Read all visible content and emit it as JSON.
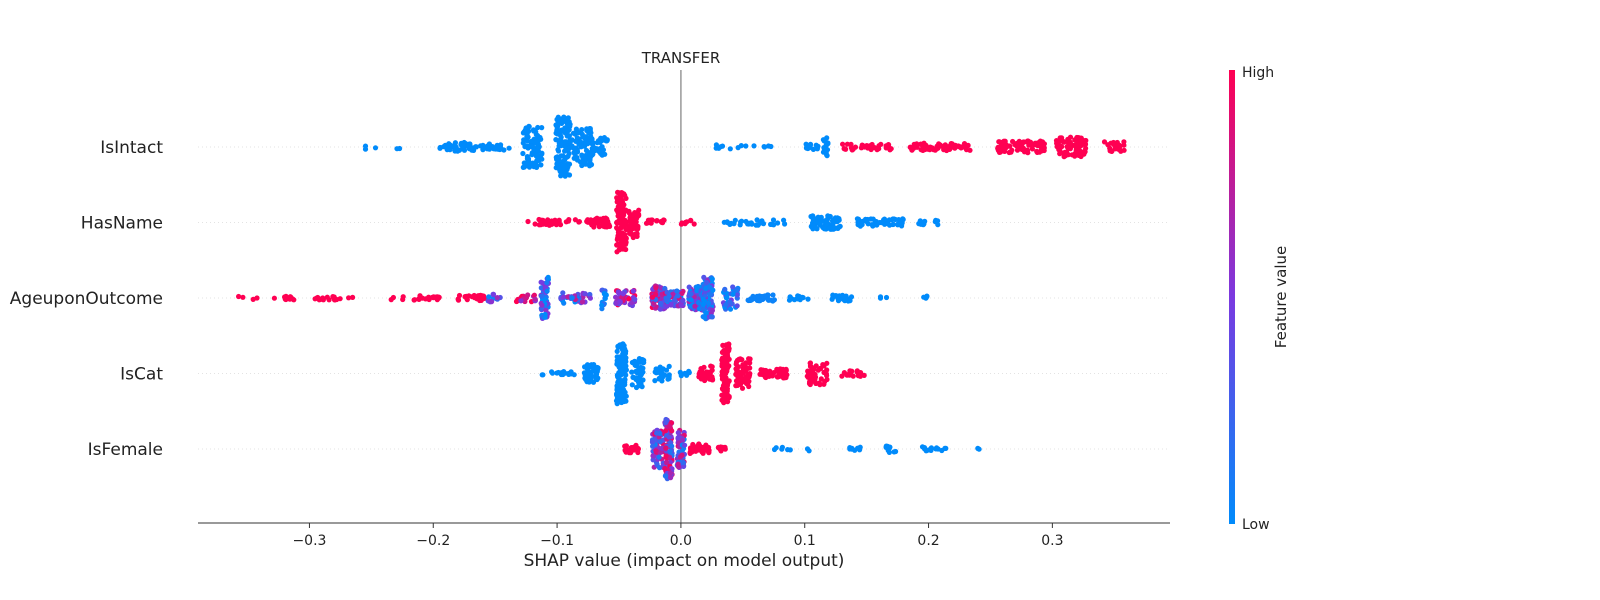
{
  "chart_data": {
    "type": "scatter",
    "title": "TRANSFER",
    "xlabel": "SHAP value (impact on model output)",
    "xlim": [
      -0.39,
      0.395
    ],
    "xticks": [
      -0.3,
      -0.2,
      -0.1,
      0.0,
      0.1,
      0.2,
      0.3
    ],
    "xtick_labels": [
      "−0.3",
      "−0.2",
      "−0.1",
      "0.0",
      "0.1",
      "0.2",
      "0.3"
    ],
    "features": [
      "IsIntact",
      "HasName",
      "AgeuponOutcome",
      "IsCat",
      "IsFemale"
    ],
    "colorbar": {
      "label": "Feature value",
      "high": "High",
      "low": "Low",
      "color_high": "#ff0052",
      "color_mid": "#7b39e0",
      "color_low": "#008bfb"
    },
    "series": [
      {
        "feature": "IsIntact",
        "clusters": [
          {
            "x": -0.255,
            "spread": 0.001,
            "height": 0.06,
            "n": 2,
            "value": 0
          },
          {
            "x": -0.247,
            "spread": 0.001,
            "height": 0.06,
            "n": 1,
            "value": 0
          },
          {
            "x": -0.228,
            "spread": 0.002,
            "height": 0.06,
            "n": 2,
            "value": 0
          },
          {
            "x": -0.18,
            "spread": 0.015,
            "height": 0.12,
            "n": 45,
            "value": 0
          },
          {
            "x": -0.15,
            "spread": 0.012,
            "height": 0.08,
            "n": 25,
            "value": 0
          },
          {
            "x": -0.12,
            "spread": 0.008,
            "height": 0.55,
            "n": 90,
            "value": 0
          },
          {
            "x": -0.095,
            "spread": 0.006,
            "height": 0.8,
            "n": 110,
            "value": 0
          },
          {
            "x": -0.08,
            "spread": 0.008,
            "height": 0.5,
            "n": 80,
            "value": 0
          },
          {
            "x": -0.065,
            "spread": 0.007,
            "height": 0.25,
            "n": 40,
            "value": 0
          },
          {
            "x": 0.05,
            "spread": 0.025,
            "height": 0.06,
            "n": 14,
            "value": 0
          },
          {
            "x": 0.105,
            "spread": 0.006,
            "height": 0.08,
            "n": 12,
            "value": 0
          },
          {
            "x": 0.117,
            "spread": 0.002,
            "height": 0.25,
            "n": 18,
            "value": 0
          },
          {
            "x": 0.15,
            "spread": 0.02,
            "height": 0.08,
            "n": 40,
            "value": 1
          },
          {
            "x": 0.21,
            "spread": 0.025,
            "height": 0.1,
            "n": 70,
            "value": 1
          },
          {
            "x": 0.275,
            "spread": 0.02,
            "height": 0.16,
            "n": 80,
            "value": 1
          },
          {
            "x": 0.315,
            "spread": 0.012,
            "height": 0.26,
            "n": 90,
            "value": 1
          },
          {
            "x": 0.35,
            "spread": 0.008,
            "height": 0.14,
            "n": 30,
            "value": 1
          }
        ]
      },
      {
        "feature": "HasName",
        "clusters": [
          {
            "x": -0.123,
            "spread": 0.001,
            "height": 0.05,
            "n": 1,
            "value": 1
          },
          {
            "x": -0.095,
            "spread": 0.025,
            "height": 0.08,
            "n": 40,
            "value": 1
          },
          {
            "x": -0.065,
            "spread": 0.008,
            "height": 0.12,
            "n": 35,
            "value": 1
          },
          {
            "x": -0.048,
            "spread": 0.004,
            "height": 0.8,
            "n": 120,
            "value": 1
          },
          {
            "x": -0.038,
            "spread": 0.004,
            "height": 0.4,
            "n": 50,
            "value": 1
          },
          {
            "x": -0.02,
            "spread": 0.008,
            "height": 0.08,
            "n": 16,
            "value": 1
          },
          {
            "x": 0.005,
            "spread": 0.006,
            "height": 0.06,
            "n": 8,
            "value": 1
          },
          {
            "x": 0.06,
            "spread": 0.025,
            "height": 0.07,
            "n": 30,
            "value": 0
          },
          {
            "x": 0.117,
            "spread": 0.012,
            "height": 0.18,
            "n": 70,
            "value": 0
          },
          {
            "x": 0.16,
            "spread": 0.02,
            "height": 0.1,
            "n": 45,
            "value": 0
          },
          {
            "x": 0.2,
            "spread": 0.008,
            "height": 0.06,
            "n": 10,
            "value": 0
          }
        ]
      },
      {
        "feature": "AgeuponOutcome",
        "clusters": [
          {
            "x": -0.355,
            "spread": 0.003,
            "height": 0.05,
            "n": 2,
            "value": 1
          },
          {
            "x": -0.345,
            "spread": 0.003,
            "height": 0.05,
            "n": 2,
            "value": 1
          },
          {
            "x": -0.32,
            "spread": 0.01,
            "height": 0.05,
            "n": 10,
            "value": 1
          },
          {
            "x": -0.28,
            "spread": 0.018,
            "height": 0.05,
            "n": 20,
            "value": 1
          },
          {
            "x": -0.215,
            "spread": 0.02,
            "height": 0.06,
            "n": 25,
            "value": 1
          },
          {
            "x": -0.17,
            "spread": 0.012,
            "height": 0.08,
            "n": 25,
            "value": 1
          },
          {
            "x": -0.15,
            "spread": 0.006,
            "height": 0.12,
            "n": 12,
            "value": 0.2
          },
          {
            "x": -0.125,
            "spread": 0.008,
            "height": 0.1,
            "n": 25,
            "value": 0.8
          },
          {
            "x": -0.11,
            "spread": 0.003,
            "height": 0.55,
            "n": 55,
            "value": 0.15
          },
          {
            "x": -0.085,
            "spread": 0.012,
            "height": 0.14,
            "n": 40,
            "value": 0.35
          },
          {
            "x": -0.062,
            "spread": 0.002,
            "height": 0.3,
            "n": 16,
            "value": 0.1
          },
          {
            "x": -0.045,
            "spread": 0.008,
            "height": 0.2,
            "n": 45,
            "value": 0.7
          },
          {
            "x": -0.018,
            "spread": 0.006,
            "height": 0.32,
            "n": 90,
            "value": 0.6
          },
          {
            "x": -0.005,
            "spread": 0.007,
            "height": 0.22,
            "n": 50,
            "value": 0.4
          },
          {
            "x": 0.012,
            "spread": 0.006,
            "height": 0.32,
            "n": 80,
            "value": 0.3
          },
          {
            "x": 0.022,
            "spread": 0.004,
            "height": 0.55,
            "n": 90,
            "value": 0.2
          },
          {
            "x": 0.04,
            "spread": 0.006,
            "height": 0.3,
            "n": 40,
            "value": 0.15
          },
          {
            "x": 0.065,
            "spread": 0.012,
            "height": 0.08,
            "n": 35,
            "value": 0.05
          },
          {
            "x": 0.095,
            "spread": 0.008,
            "height": 0.06,
            "n": 15,
            "value": 0
          },
          {
            "x": 0.13,
            "spread": 0.008,
            "height": 0.08,
            "n": 25,
            "value": 0
          },
          {
            "x": 0.165,
            "spread": 0.005,
            "height": 0.05,
            "n": 3,
            "value": 0
          },
          {
            "x": 0.2,
            "spread": 0.004,
            "height": 0.05,
            "n": 4,
            "value": 0
          }
        ]
      },
      {
        "feature": "IsCat",
        "clusters": [
          {
            "x": -0.112,
            "spread": 0.001,
            "height": 0.05,
            "n": 2,
            "value": 0
          },
          {
            "x": -0.095,
            "spread": 0.01,
            "height": 0.06,
            "n": 14,
            "value": 0
          },
          {
            "x": -0.072,
            "spread": 0.006,
            "height": 0.25,
            "n": 40,
            "value": 0
          },
          {
            "x": -0.048,
            "spread": 0.004,
            "height": 0.8,
            "n": 120,
            "value": 0
          },
          {
            "x": -0.035,
            "spread": 0.005,
            "height": 0.4,
            "n": 50,
            "value": 0
          },
          {
            "x": -0.015,
            "spread": 0.006,
            "height": 0.2,
            "n": 24,
            "value": 0
          },
          {
            "x": 0.005,
            "spread": 0.006,
            "height": 0.06,
            "n": 8,
            "value": 0
          },
          {
            "x": 0.02,
            "spread": 0.006,
            "height": 0.2,
            "n": 30,
            "value": 1
          },
          {
            "x": 0.036,
            "spread": 0.003,
            "height": 0.8,
            "n": 100,
            "value": 1
          },
          {
            "x": 0.05,
            "spread": 0.006,
            "height": 0.4,
            "n": 60,
            "value": 1
          },
          {
            "x": 0.075,
            "spread": 0.012,
            "height": 0.12,
            "n": 45,
            "value": 1
          },
          {
            "x": 0.11,
            "spread": 0.008,
            "height": 0.3,
            "n": 50,
            "value": 1
          },
          {
            "x": 0.14,
            "spread": 0.01,
            "height": 0.08,
            "n": 18,
            "value": 1
          }
        ]
      },
      {
        "feature": "IsFemale",
        "clusters": [
          {
            "x": -0.04,
            "spread": 0.006,
            "height": 0.1,
            "n": 20,
            "value": 1
          },
          {
            "x": -0.018,
            "spread": 0.005,
            "height": 0.5,
            "n": 70,
            "value": 0.5
          },
          {
            "x": -0.01,
            "spread": 0.003,
            "height": 0.8,
            "n": 100,
            "value": 0.55
          },
          {
            "x": 0.0,
            "spread": 0.003,
            "height": 0.5,
            "n": 60,
            "value": 0.45
          },
          {
            "x": 0.015,
            "spread": 0.008,
            "height": 0.14,
            "n": 30,
            "value": 1
          },
          {
            "x": 0.032,
            "spread": 0.004,
            "height": 0.06,
            "n": 8,
            "value": 1
          },
          {
            "x": 0.09,
            "spread": 0.015,
            "height": 0.05,
            "n": 8,
            "value": 0
          },
          {
            "x": 0.14,
            "spread": 0.005,
            "height": 0.06,
            "n": 8,
            "value": 0
          },
          {
            "x": 0.17,
            "spread": 0.005,
            "height": 0.1,
            "n": 10,
            "value": 0
          },
          {
            "x": 0.205,
            "spread": 0.01,
            "height": 0.06,
            "n": 14,
            "value": 0
          },
          {
            "x": 0.24,
            "spread": 0.003,
            "height": 0.05,
            "n": 2,
            "value": 0
          }
        ]
      }
    ]
  }
}
